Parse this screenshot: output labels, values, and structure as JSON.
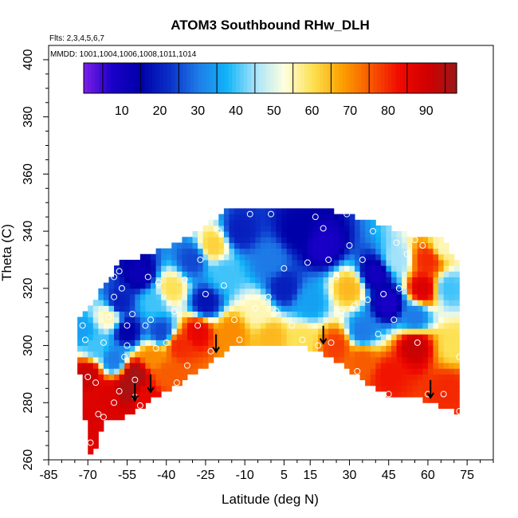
{
  "chart_data": {
    "type": "heatmap",
    "title": "ATOM3 Southbound RHw_DLH",
    "subtitle_flights": "Flts: 2,3,4,5,6,7",
    "subtitle_dates": "MMDD: 1001,1004,1006,1008,1011,1014",
    "xlabel": "Latitude (deg N)",
    "ylabel": "Theta (C)",
    "xlim": [
      -85,
      85
    ],
    "ylim": [
      260,
      405
    ],
    "x_ticks": [
      -85,
      -70,
      -55,
      -40,
      -25,
      -10,
      5,
      15,
      30,
      45,
      60,
      75
    ],
    "y_ticks": [
      260,
      280,
      300,
      320,
      340,
      360,
      380,
      400
    ],
    "grid": false,
    "colorbar": {
      "range": [
        0,
        98
      ],
      "ticks": [
        10,
        20,
        30,
        40,
        50,
        60,
        70,
        80,
        90
      ],
      "colors": [
        "#7b1fe8",
        "#1a00c8",
        "#0000a8",
        "#0a30c8",
        "#1e7ce8",
        "#12b4f8",
        "#a8e4fa",
        "#ffffe0",
        "#fde050",
        "#fca000",
        "#f85800",
        "#f00a00",
        "#d00000",
        "#9c1818"
      ]
    },
    "arrows": [
      {
        "lat": -52,
        "theta": 283
      },
      {
        "lat": -46,
        "theta": 286
      },
      {
        "lat": -21,
        "theta": 300
      },
      {
        "lat": 20,
        "theta": 303
      },
      {
        "lat": 61,
        "theta": 284
      }
    ],
    "boundary_top": [
      {
        "lat": -74,
        "theta": 309
      },
      {
        "lat": -66,
        "theta": 318
      },
      {
        "lat": -58,
        "theta": 329
      },
      {
        "lat": -40,
        "theta": 334
      },
      {
        "lat": -28,
        "theta": 340
      },
      {
        "lat": -16,
        "theta": 348
      },
      {
        "lat": -5,
        "theta": 349
      },
      {
        "lat": 10,
        "theta": 349
      },
      {
        "lat": 25,
        "theta": 347
      },
      {
        "lat": 40,
        "theta": 343
      },
      {
        "lat": 52,
        "theta": 339
      },
      {
        "lat": 65,
        "theta": 338
      },
      {
        "lat": 71,
        "theta": 330
      },
      {
        "lat": 72,
        "theta": 306
      }
    ],
    "boundary_bottom": [
      {
        "lat": 72,
        "theta": 276
      },
      {
        "lat": 65,
        "theta": 279
      },
      {
        "lat": 55,
        "theta": 282
      },
      {
        "lat": 44,
        "theta": 283
      },
      {
        "lat": 35,
        "theta": 288
      },
      {
        "lat": 25,
        "theta": 295
      },
      {
        "lat": 12,
        "theta": 300
      },
      {
        "lat": 0,
        "theta": 300
      },
      {
        "lat": -12,
        "theta": 301
      },
      {
        "lat": -26,
        "theta": 292
      },
      {
        "lat": -40,
        "theta": 284
      },
      {
        "lat": -50,
        "theta": 278
      },
      {
        "lat": -58,
        "theta": 274
      },
      {
        "lat": -64,
        "theta": 273
      },
      {
        "lat": -66,
        "theta": 266
      },
      {
        "lat": -69,
        "theta": 261
      },
      {
        "lat": -72,
        "theta": 280
      },
      {
        "lat": -74,
        "theta": 300
      }
    ],
    "field_nodes": [
      {
        "lat": -70,
        "theta": 290,
        "v": 92
      },
      {
        "lat": -68,
        "theta": 275,
        "v": 88
      },
      {
        "lat": -67,
        "theta": 300,
        "v": 40
      },
      {
        "lat": -72,
        "theta": 305,
        "v": 35
      },
      {
        "lat": -62,
        "theta": 283,
        "v": 88
      },
      {
        "lat": -60,
        "theta": 295,
        "v": 30
      },
      {
        "lat": -55,
        "theta": 285,
        "v": 96
      },
      {
        "lat": -52,
        "theta": 290,
        "v": 97
      },
      {
        "lat": -48,
        "theta": 282,
        "v": 85
      },
      {
        "lat": -45,
        "theta": 296,
        "v": 70
      },
      {
        "lat": -40,
        "theta": 290,
        "v": 75
      },
      {
        "lat": -35,
        "theta": 300,
        "v": 80
      },
      {
        "lat": -28,
        "theta": 305,
        "v": 85
      },
      {
        "lat": -15,
        "theta": 305,
        "v": 70
      },
      {
        "lat": 0,
        "theta": 303,
        "v": 65
      },
      {
        "lat": 12,
        "theta": 302,
        "v": 60
      },
      {
        "lat": 25,
        "theta": 300,
        "v": 78
      },
      {
        "lat": 35,
        "theta": 295,
        "v": 75
      },
      {
        "lat": 45,
        "theta": 290,
        "v": 82
      },
      {
        "lat": 55,
        "theta": 300,
        "v": 92
      },
      {
        "lat": 58,
        "theta": 320,
        "v": 88
      },
      {
        "lat": 60,
        "theta": 330,
        "v": 80
      },
      {
        "lat": 68,
        "theta": 285,
        "v": 80
      },
      {
        "lat": 70,
        "theta": 300,
        "v": 60
      },
      {
        "lat": 68,
        "theta": 320,
        "v": 40
      },
      {
        "lat": 66,
        "theta": 335,
        "v": 55
      },
      {
        "lat": 45,
        "theta": 315,
        "v": 8
      },
      {
        "lat": 40,
        "theta": 325,
        "v": 10
      },
      {
        "lat": 35,
        "theta": 305,
        "v": 30
      },
      {
        "lat": 48,
        "theta": 330,
        "v": 45
      },
      {
        "lat": 30,
        "theta": 320,
        "v": 65
      },
      {
        "lat": 20,
        "theta": 335,
        "v": 8
      },
      {
        "lat": 10,
        "theta": 340,
        "v": 15
      },
      {
        "lat": 5,
        "theta": 320,
        "v": 20
      },
      {
        "lat": 0,
        "theta": 330,
        "v": 30
      },
      {
        "lat": -5,
        "theta": 312,
        "v": 55
      },
      {
        "lat": -12,
        "theta": 340,
        "v": 20
      },
      {
        "lat": -18,
        "theta": 325,
        "v": 40
      },
      {
        "lat": -25,
        "theta": 315,
        "v": 18
      },
      {
        "lat": -30,
        "theta": 330,
        "v": 25
      },
      {
        "lat": -38,
        "theta": 320,
        "v": 60
      },
      {
        "lat": -45,
        "theta": 315,
        "v": 40
      },
      {
        "lat": -50,
        "theta": 325,
        "v": 12
      },
      {
        "lat": -55,
        "theta": 305,
        "v": 15
      },
      {
        "lat": -58,
        "theta": 315,
        "v": 20
      },
      {
        "lat": -62,
        "theta": 310,
        "v": 55
      },
      {
        "lat": -42,
        "theta": 305,
        "v": 25
      },
      {
        "lat": -22,
        "theta": 335,
        "v": 62
      },
      {
        "lat": 15,
        "theta": 315,
        "v": 35
      },
      {
        "lat": 55,
        "theta": 310,
        "v": 30
      }
    ],
    "sample_points": [
      {
        "lat": -69,
        "theta": 266
      },
      {
        "lat": -66,
        "theta": 276
      },
      {
        "lat": -67,
        "theta": 287
      },
      {
        "lat": -70,
        "theta": 289
      },
      {
        "lat": -71,
        "theta": 302
      },
      {
        "lat": -72,
        "theta": 307
      },
      {
        "lat": -64,
        "theta": 301
      },
      {
        "lat": -62,
        "theta": 310
      },
      {
        "lat": -60,
        "theta": 317
      },
      {
        "lat": -57,
        "theta": 320
      },
      {
        "lat": -60,
        "theta": 324
      },
      {
        "lat": -58,
        "theta": 326
      },
      {
        "lat": -55,
        "theta": 307
      },
      {
        "lat": -53,
        "theta": 311
      },
      {
        "lat": -55,
        "theta": 300
      },
      {
        "lat": -56,
        "theta": 296
      },
      {
        "lat": -52,
        "theta": 288
      },
      {
        "lat": -58,
        "theta": 284
      },
      {
        "lat": -60,
        "theta": 280
      },
      {
        "lat": -64,
        "theta": 275
      },
      {
        "lat": -52,
        "theta": 282
      },
      {
        "lat": -50,
        "theta": 279
      },
      {
        "lat": -48,
        "theta": 307
      },
      {
        "lat": -46,
        "theta": 309
      },
      {
        "lat": -44,
        "theta": 299
      },
      {
        "lat": -47,
        "theta": 324
      },
      {
        "lat": -43,
        "theta": 322
      },
      {
        "lat": -40,
        "theta": 301
      },
      {
        "lat": -37,
        "theta": 312
      },
      {
        "lat": -33,
        "theta": 323
      },
      {
        "lat": -28,
        "theta": 307
      },
      {
        "lat": -27,
        "theta": 330
      },
      {
        "lat": -25,
        "theta": 318
      },
      {
        "lat": -23,
        "theta": 298
      },
      {
        "lat": -20,
        "theta": 340
      },
      {
        "lat": -18,
        "theta": 321
      },
      {
        "lat": -14,
        "theta": 309
      },
      {
        "lat": -12,
        "theta": 302
      },
      {
        "lat": -8,
        "theta": 346
      },
      {
        "lat": -6,
        "theta": 313
      },
      {
        "lat": 0,
        "theta": 346
      },
      {
        "lat": 2,
        "theta": 312
      },
      {
        "lat": 5,
        "theta": 327
      },
      {
        "lat": 8,
        "theta": 307
      },
      {
        "lat": 12,
        "theta": 302
      },
      {
        "lat": 14,
        "theta": 329
      },
      {
        "lat": 17,
        "theta": 345
      },
      {
        "lat": 20,
        "theta": 341
      },
      {
        "lat": 22,
        "theta": 330
      },
      {
        "lat": 25,
        "theta": 324
      },
      {
        "lat": 27,
        "theta": 312
      },
      {
        "lat": 29,
        "theta": 346
      },
      {
        "lat": 30,
        "theta": 335
      },
      {
        "lat": 32,
        "theta": 314
      },
      {
        "lat": 33,
        "theta": 291
      },
      {
        "lat": 35,
        "theta": 330
      },
      {
        "lat": 37,
        "theta": 316
      },
      {
        "lat": 39,
        "theta": 340
      },
      {
        "lat": 41,
        "theta": 304
      },
      {
        "lat": 43,
        "theta": 318
      },
      {
        "lat": 45,
        "theta": 283
      },
      {
        "lat": 48,
        "theta": 336
      },
      {
        "lat": 49,
        "theta": 320
      },
      {
        "lat": 52,
        "theta": 332
      },
      {
        "lat": 55,
        "theta": 337
      },
      {
        "lat": 56,
        "theta": 301
      },
      {
        "lat": 58,
        "theta": 335
      },
      {
        "lat": 60,
        "theta": 283
      },
      {
        "lat": 66,
        "theta": 283
      },
      {
        "lat": 70,
        "theta": 337
      },
      {
        "lat": 72,
        "theta": 296
      },
      {
        "lat": 72,
        "theta": 277
      },
      {
        "lat": 47,
        "theta": 309
      },
      {
        "lat": 18,
        "theta": 300
      },
      {
        "lat": 23,
        "theta": 301
      },
      {
        "lat": -1,
        "theta": 317
      },
      {
        "lat": -32,
        "theta": 293
      },
      {
        "lat": -36,
        "theta": 287
      }
    ]
  }
}
